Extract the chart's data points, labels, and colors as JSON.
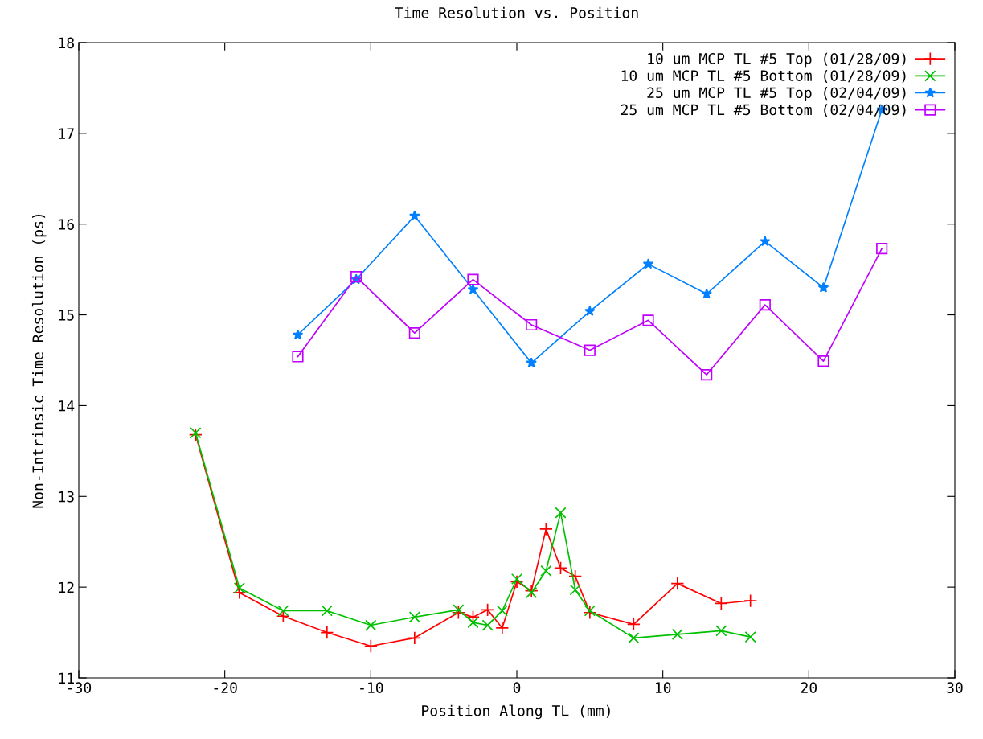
{
  "chart_data": {
    "type": "line",
    "title": "Time Resolution vs. Position",
    "xlabel": "Position Along TL (mm)",
    "ylabel": "Non-Intrinsic Time Resolution (ps)",
    "xlim": [
      -30,
      30
    ],
    "xticks": [
      -30,
      -20,
      -10,
      0,
      10,
      20,
      30
    ],
    "ylim": [
      11,
      18
    ],
    "yticks": [
      11,
      12,
      13,
      14,
      15,
      16,
      17,
      18
    ],
    "grid": false,
    "legend": "top right",
    "line_style": "solid",
    "series": [
      {
        "name": "10 um MCP TL #5 Top (01/28/09)",
        "color": "#ff0000",
        "marker": "plus",
        "x": [
          -22,
          -19,
          -16,
          -13,
          -10,
          -7,
          -4,
          -3,
          -2,
          -1,
          0,
          1,
          2,
          3,
          4,
          5,
          8,
          11,
          14,
          16
        ],
        "values": [
          13.68,
          11.94,
          11.68,
          11.5,
          11.35,
          11.44,
          11.72,
          11.67,
          11.75,
          11.55,
          12.06,
          11.96,
          12.64,
          12.21,
          12.12,
          11.72,
          11.59,
          12.04,
          11.82,
          11.85
        ]
      },
      {
        "name": "10 um MCP TL #5 Bottom (01/28/09)",
        "color": "#00c000",
        "marker": "cross",
        "x": [
          -22,
          -19,
          -16,
          -13,
          -10,
          -7,
          -4,
          -3,
          -2,
          -1,
          0,
          1,
          2,
          3,
          4,
          5,
          8,
          11,
          14,
          16
        ],
        "values": [
          13.7,
          11.99,
          11.74,
          11.74,
          11.58,
          11.67,
          11.75,
          11.61,
          11.58,
          11.74,
          12.09,
          11.94,
          12.18,
          12.82,
          11.97,
          11.74,
          11.44,
          11.48,
          11.52,
          11.45
        ]
      },
      {
        "name": "25 um MCP TL #5 Top (02/04/09)",
        "color": "#0080ff",
        "marker": "star",
        "x": [
          -15,
          -11,
          -7,
          -3,
          1,
          5,
          9,
          13,
          17,
          21,
          25
        ],
        "values": [
          14.78,
          15.39,
          16.09,
          15.28,
          14.47,
          15.04,
          15.56,
          15.23,
          15.81,
          15.3,
          17.26
        ]
      },
      {
        "name": "25 um MCP TL #5 Bottom (02/04/09)",
        "color": "#c000ff",
        "marker": "square",
        "x": [
          -15,
          -11,
          -7,
          -3,
          1,
          5,
          9,
          13,
          17,
          21,
          25
        ],
        "values": [
          14.54,
          15.42,
          14.8,
          15.39,
          14.89,
          14.61,
          14.94,
          14.34,
          15.11,
          14.49,
          15.73
        ]
      }
    ]
  }
}
